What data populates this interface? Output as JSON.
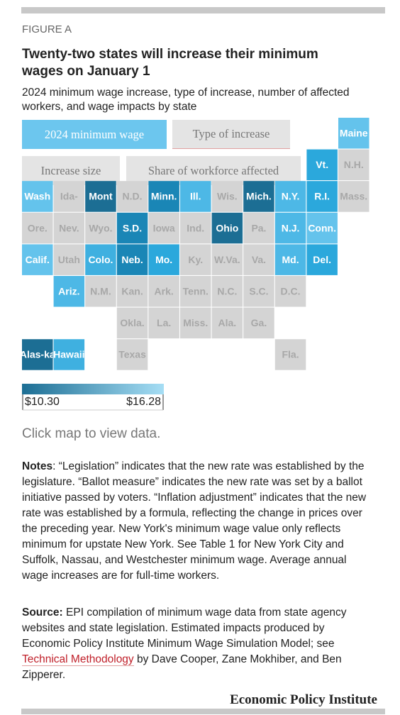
{
  "figure_label": "FIGURE A",
  "title": "Twenty-two states will increase their minimum wages on January 1",
  "subtitle": "2024 minimum wage increase, type of increase, number of affected workers, and wage impacts by state",
  "tabs": [
    {
      "label": "2024 minimum wage",
      "active": true
    },
    {
      "label": "Type of increase",
      "active": false
    },
    {
      "label": "Increase size",
      "active": false
    },
    {
      "label": "Share of workforce affected",
      "active": false
    }
  ],
  "map": {
    "tiles": [
      {
        "label": "Maine",
        "color": "#64c3ec"
      },
      {
        "label": "Vt.",
        "color": "#2ba8dc"
      },
      {
        "label": "N.H.",
        "color": "#d4d4d4"
      },
      {
        "label": "Wash",
        "color": "#64c3ec"
      },
      {
        "label": "Ida-",
        "color": "#d4d4d4"
      },
      {
        "label": "Mont",
        "color": "#1c6e94"
      },
      {
        "label": "N.D.",
        "color": "#d4d4d4"
      },
      {
        "label": "Minn.",
        "color": "#1a86b6"
      },
      {
        "label": "Ill.",
        "color": "#4db8e6"
      },
      {
        "label": "Wis.",
        "color": "#d4d4d4"
      },
      {
        "label": "Mich.",
        "color": "#1c6e94"
      },
      {
        "label": "N.Y.",
        "color": "#4db8e6"
      },
      {
        "label": "R.I.",
        "color": "#2ba8dc"
      },
      {
        "label": "Mass.",
        "color": "#d4d4d4"
      },
      {
        "label": "Ore.",
        "color": "#d4d4d4"
      },
      {
        "label": "Nev.",
        "color": "#d4d4d4"
      },
      {
        "label": "Wyo.",
        "color": "#d4d4d4"
      },
      {
        "label": "S.D.",
        "color": "#1a86b6"
      },
      {
        "label": "Iowa",
        "color": "#d4d4d4"
      },
      {
        "label": "Ind.",
        "color": "#d4d4d4"
      },
      {
        "label": "Ohio",
        "color": "#1c6e94"
      },
      {
        "label": "Pa.",
        "color": "#d4d4d4"
      },
      {
        "label": "N.J.",
        "color": "#4db8e6"
      },
      {
        "label": "Conn.",
        "color": "#64c3ec"
      },
      {
        "label": "Calif.",
        "color": "#64c3ec"
      },
      {
        "label": "Utah",
        "color": "#d4d4d4"
      },
      {
        "label": "Colo.",
        "color": "#3fb0e0"
      },
      {
        "label": "Neb.",
        "color": "#1a86b6"
      },
      {
        "label": "Mo.",
        "color": "#2ba8dc"
      },
      {
        "label": "Ky.",
        "color": "#d4d4d4"
      },
      {
        "label": "W.Va.",
        "color": "#d4d4d4"
      },
      {
        "label": "Va.",
        "color": "#d4d4d4"
      },
      {
        "label": "Md.",
        "color": "#4db8e6"
      },
      {
        "label": "Del.",
        "color": "#2ba8dc"
      },
      {
        "label": "Ariz.",
        "color": "#4db8e6"
      },
      {
        "label": "N.M.",
        "color": "#d4d4d4"
      },
      {
        "label": "Kan.",
        "color": "#d4d4d4"
      },
      {
        "label": "Ark.",
        "color": "#d4d4d4"
      },
      {
        "label": "Tenn.",
        "color": "#d4d4d4"
      },
      {
        "label": "N.C.",
        "color": "#d4d4d4"
      },
      {
        "label": "S.C.",
        "color": "#d4d4d4"
      },
      {
        "label": "D.C.",
        "color": "#d4d4d4"
      },
      {
        "label": "Okla.",
        "color": "#d4d4d4"
      },
      {
        "label": "La.",
        "color": "#d4d4d4"
      },
      {
        "label": "Miss.",
        "color": "#d4d4d4"
      },
      {
        "label": "Ala.",
        "color": "#d4d4d4"
      },
      {
        "label": "Ga.",
        "color": "#d4d4d4"
      },
      {
        "label": "Alas-ka",
        "color": "#1c6e94"
      },
      {
        "label": "Hawaii",
        "color": "#3fb0e0"
      },
      {
        "label": "Texas",
        "color": "#d4d4d4"
      },
      {
        "label": "Fla.",
        "color": "#d4d4d4"
      }
    ],
    "legend": {
      "min_label": "$10.30",
      "max_label": "$16.28",
      "min_color": "#1c6e94",
      "max_color": "#a6def5"
    }
  },
  "hint": "Click map to view data.",
  "notes": {
    "label": "Notes",
    "text": ": “Legislation” indicates that the new rate was established by the legislature. “Ballot measure” indicates the new rate was set by a ballot initiative passed by voters. “Inflation adjustment” indicates that the new rate was established by a formula, reflecting the change in prices over the preceding year. New York's minimum wage value only reflects minimum for upstate New York. See Table 1 for New York City and Suffolk, Nassau, and Westchester minimum wage. Average annual wage increases are for full-time workers."
  },
  "source": {
    "label": "Source:",
    "text_before": " EPI compilation of minimum wage data from state agency websites and state legislation. Estimated impacts produced by Economic Policy Institute Minimum Wage Simulation Model; see ",
    "link": "Technical Methodology",
    "text_after": " by Dave Cooper, Zane Mokhiber, and Ben Zipperer."
  },
  "brand": "Economic Policy Institute"
}
